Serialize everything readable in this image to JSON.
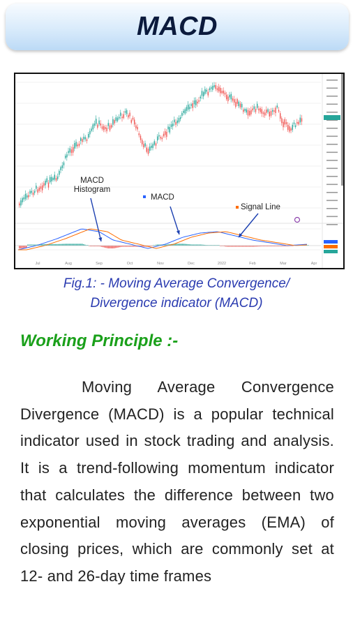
{
  "header": {
    "title": "MACD"
  },
  "figure": {
    "annotations": {
      "histogram_line1": "MACD",
      "histogram_line2": "Histogram",
      "macd": "MACD",
      "signal": "Signal Line"
    },
    "x_ticks": [
      "Jul",
      "Aug",
      "Sep",
      "Oct",
      "Nov",
      "Dec",
      "2022",
      "Feb",
      "Mar",
      "Apr"
    ],
    "colors": {
      "up": "#26a69a",
      "down": "#ef5350",
      "macd": "#2962ff",
      "signal": "#ff6d00",
      "arrow": "#1b3fb0"
    }
  },
  "caption": {
    "line1": "Fig.1: - Moving Average Convergence/",
    "line2": "Divergence indicator (MACD)"
  },
  "section": {
    "heading": "Working Principle :-",
    "paragraph": "Moving Average Convergence Divergence (MACD) is a popular technical indicator used in stock trading and analysis. It is a trend-following momentum indicator that calculates the difference between two exponential moving averages (EMA) of closing prices, which are commonly set at 12- and 26-day time frames"
  }
}
